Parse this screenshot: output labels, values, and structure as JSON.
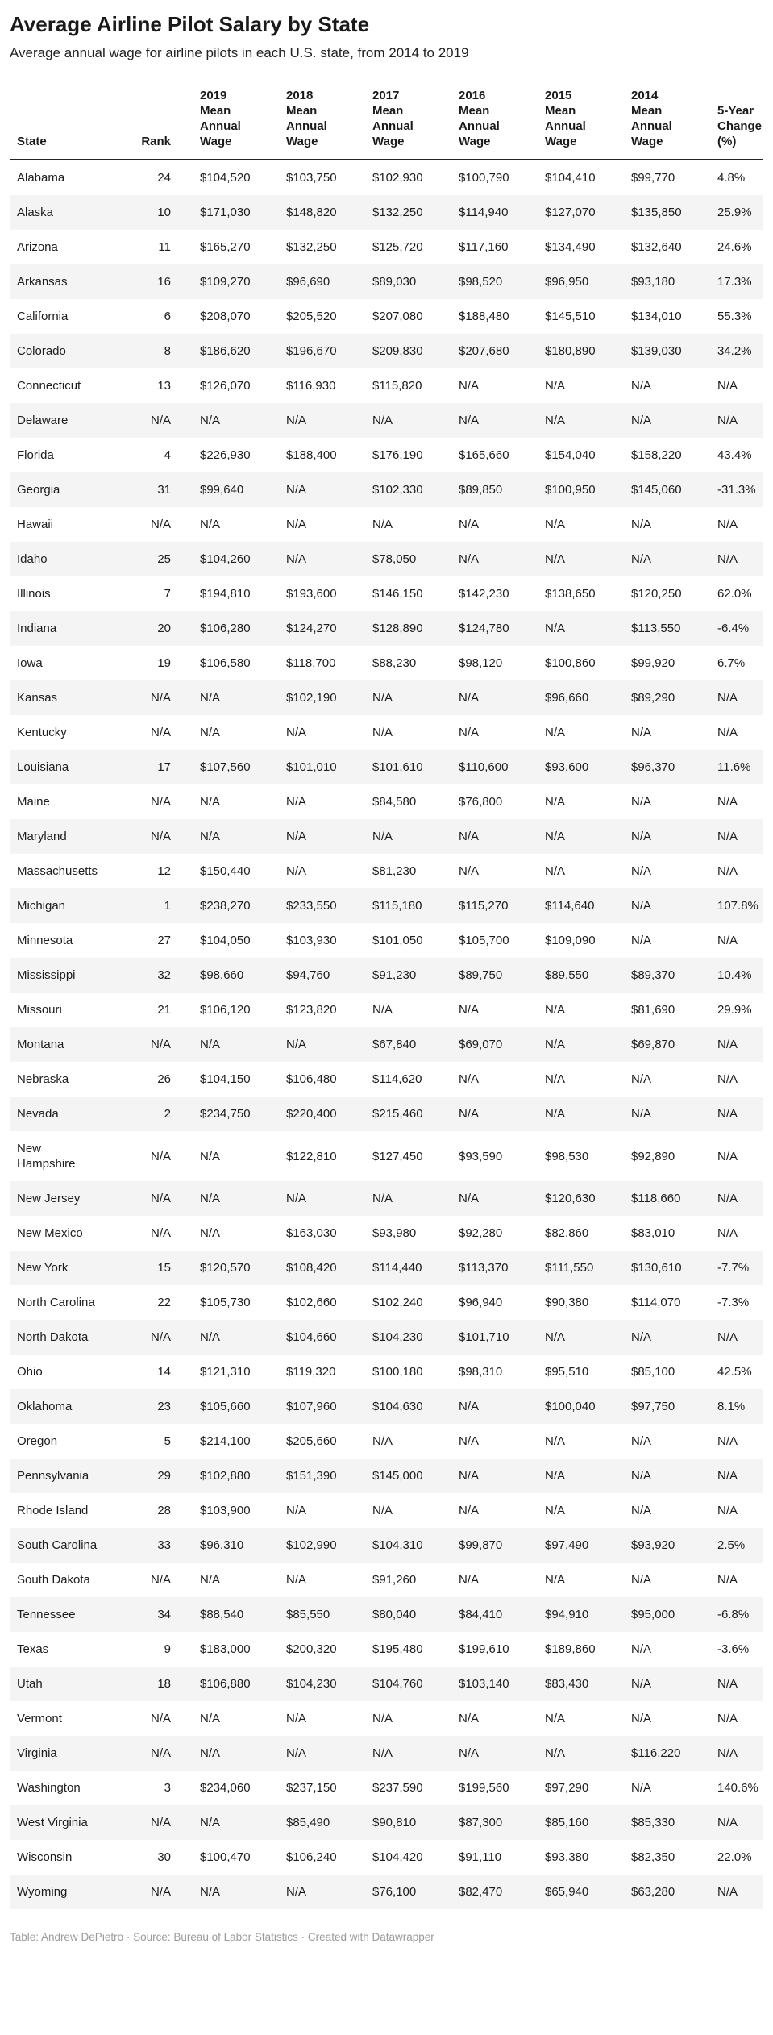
{
  "table": {
    "header_display": [
      "State",
      "Rank",
      "2019\nMean\nAnnual\nWage",
      "2018\nMean\nAnnual\nWage",
      "2017\nMean\nAnnual\nWage",
      "2016\nMean\nAnnual\nWage",
      "2015\nMean\nAnnual\nWage",
      "2014\nMean\nAnnual\nWage",
      "5-Year\nChange\n(%)"
    ],
    "column_keys": [
      "state",
      "rank",
      "wage-2019",
      "wage-2018",
      "wage-2017",
      "wage-2016",
      "wage-2015",
      "wage-2014",
      "five-year-change"
    ]
  },
  "chart_data": {
    "type": "table",
    "title": "Average Airline Pilot Salary by State",
    "subtitle": "Average annual wage for airline pilots in each U.S. state, from 2014 to 2019",
    "attribution": "Table: Andrew DePietro · Source: Bureau of Labor Statistics · Created with Datawrapper",
    "columns": [
      "State",
      "Rank",
      "2019 Mean Annual Wage",
      "2018 Mean Annual Wage",
      "2017 Mean Annual Wage",
      "2016 Mean Annual Wage",
      "2015 Mean Annual Wage",
      "2014 Mean Annual Wage",
      "5-Year Change (%)"
    ],
    "rows": [
      [
        "Alabama",
        "24",
        "$104,520",
        "$103,750",
        "$102,930",
        "$100,790",
        "$104,410",
        "$99,770",
        "4.8%"
      ],
      [
        "Alaska",
        "10",
        "$171,030",
        "$148,820",
        "$132,250",
        "$114,940",
        "$127,070",
        "$135,850",
        "25.9%"
      ],
      [
        "Arizona",
        "11",
        "$165,270",
        "$132,250",
        "$125,720",
        "$117,160",
        "$134,490",
        "$132,640",
        "24.6%"
      ],
      [
        "Arkansas",
        "16",
        "$109,270",
        "$96,690",
        "$89,030",
        "$98,520",
        "$96,950",
        "$93,180",
        "17.3%"
      ],
      [
        "California",
        "6",
        "$208,070",
        "$205,520",
        "$207,080",
        "$188,480",
        "$145,510",
        "$134,010",
        "55.3%"
      ],
      [
        "Colorado",
        "8",
        "$186,620",
        "$196,670",
        "$209,830",
        "$207,680",
        "$180,890",
        "$139,030",
        "34.2%"
      ],
      [
        "Connecticut",
        "13",
        "$126,070",
        "$116,930",
        "$115,820",
        "N/A",
        "N/A",
        "N/A",
        "N/A"
      ],
      [
        "Delaware",
        "N/A",
        "N/A",
        "N/A",
        "N/A",
        "N/A",
        "N/A",
        "N/A",
        "N/A"
      ],
      [
        "Florida",
        "4",
        "$226,930",
        "$188,400",
        "$176,190",
        "$165,660",
        "$154,040",
        "$158,220",
        "43.4%"
      ],
      [
        "Georgia",
        "31",
        "$99,640",
        "N/A",
        "$102,330",
        "$89,850",
        "$100,950",
        "$145,060",
        "-31.3%"
      ],
      [
        "Hawaii",
        "N/A",
        "N/A",
        "N/A",
        "N/A",
        "N/A",
        "N/A",
        "N/A",
        "N/A"
      ],
      [
        "Idaho",
        "25",
        "$104,260",
        "N/A",
        "$78,050",
        "N/A",
        "N/A",
        "N/A",
        "N/A"
      ],
      [
        "Illinois",
        "7",
        "$194,810",
        "$193,600",
        "$146,150",
        "$142,230",
        "$138,650",
        "$120,250",
        "62.0%"
      ],
      [
        "Indiana",
        "20",
        "$106,280",
        "$124,270",
        "$128,890",
        "$124,780",
        "N/A",
        "$113,550",
        "-6.4%"
      ],
      [
        "Iowa",
        "19",
        "$106,580",
        "$118,700",
        "$88,230",
        "$98,120",
        "$100,860",
        "$99,920",
        "6.7%"
      ],
      [
        "Kansas",
        "N/A",
        "N/A",
        "$102,190",
        "N/A",
        "N/A",
        "$96,660",
        "$89,290",
        "N/A"
      ],
      [
        "Kentucky",
        "N/A",
        "N/A",
        "N/A",
        "N/A",
        "N/A",
        "N/A",
        "N/A",
        "N/A"
      ],
      [
        "Louisiana",
        "17",
        "$107,560",
        "$101,010",
        "$101,610",
        "$110,600",
        "$93,600",
        "$96,370",
        "11.6%"
      ],
      [
        "Maine",
        "N/A",
        "N/A",
        "N/A",
        "$84,580",
        "$76,800",
        "N/A",
        "N/A",
        "N/A"
      ],
      [
        "Maryland",
        "N/A",
        "N/A",
        "N/A",
        "N/A",
        "N/A",
        "N/A",
        "N/A",
        "N/A"
      ],
      [
        "Massachusetts",
        "12",
        "$150,440",
        "N/A",
        "$81,230",
        "N/A",
        "N/A",
        "N/A",
        "N/A"
      ],
      [
        "Michigan",
        "1",
        "$238,270",
        "$233,550",
        "$115,180",
        "$115,270",
        "$114,640",
        "N/A",
        "107.8%"
      ],
      [
        "Minnesota",
        "27",
        "$104,050",
        "$103,930",
        "$101,050",
        "$105,700",
        "$109,090",
        "N/A",
        "N/A"
      ],
      [
        "Mississippi",
        "32",
        "$98,660",
        "$94,760",
        "$91,230",
        "$89,750",
        "$89,550",
        "$89,370",
        "10.4%"
      ],
      [
        "Missouri",
        "21",
        "$106,120",
        "$123,820",
        "N/A",
        "N/A",
        "N/A",
        "$81,690",
        "29.9%"
      ],
      [
        "Montana",
        "N/A",
        "N/A",
        "N/A",
        "$67,840",
        "$69,070",
        "N/A",
        "$69,870",
        "N/A"
      ],
      [
        "Nebraska",
        "26",
        "$104,150",
        "$106,480",
        "$114,620",
        "N/A",
        "N/A",
        "N/A",
        "N/A"
      ],
      [
        "Nevada",
        "2",
        "$234,750",
        "$220,400",
        "$215,460",
        "N/A",
        "N/A",
        "N/A",
        "N/A"
      ],
      [
        "New Hampshire",
        "N/A",
        "N/A",
        "$122,810",
        "$127,450",
        "$93,590",
        "$98,530",
        "$92,890",
        "N/A"
      ],
      [
        "New Jersey",
        "N/A",
        "N/A",
        "N/A",
        "N/A",
        "N/A",
        "$120,630",
        "$118,660",
        "N/A"
      ],
      [
        "New Mexico",
        "N/A",
        "N/A",
        "$163,030",
        "$93,980",
        "$92,280",
        "$82,860",
        "$83,010",
        "N/A"
      ],
      [
        "New York",
        "15",
        "$120,570",
        "$108,420",
        "$114,440",
        "$113,370",
        "$111,550",
        "$130,610",
        "-7.7%"
      ],
      [
        "North Carolina",
        "22",
        "$105,730",
        "$102,660",
        "$102,240",
        "$96,940",
        "$90,380",
        "$114,070",
        "-7.3%"
      ],
      [
        "North Dakota",
        "N/A",
        "N/A",
        "$104,660",
        "$104,230",
        "$101,710",
        "N/A",
        "N/A",
        "N/A"
      ],
      [
        "Ohio",
        "14",
        "$121,310",
        "$119,320",
        "$100,180",
        "$98,310",
        "$95,510",
        "$85,100",
        "42.5%"
      ],
      [
        "Oklahoma",
        "23",
        "$105,660",
        "$107,960",
        "$104,630",
        "N/A",
        "$100,040",
        "$97,750",
        "8.1%"
      ],
      [
        "Oregon",
        "5",
        "$214,100",
        "$205,660",
        "N/A",
        "N/A",
        "N/A",
        "N/A",
        "N/A"
      ],
      [
        "Pennsylvania",
        "29",
        "$102,880",
        "$151,390",
        "$145,000",
        "N/A",
        "N/A",
        "N/A",
        "N/A"
      ],
      [
        "Rhode Island",
        "28",
        "$103,900",
        "N/A",
        "N/A",
        "N/A",
        "N/A",
        "N/A",
        "N/A"
      ],
      [
        "South Carolina",
        "33",
        "$96,310",
        "$102,990",
        "$104,310",
        "$99,870",
        "$97,490",
        "$93,920",
        "2.5%"
      ],
      [
        "South Dakota",
        "N/A",
        "N/A",
        "N/A",
        "$91,260",
        "N/A",
        "N/A",
        "N/A",
        "N/A"
      ],
      [
        "Tennessee",
        "34",
        "$88,540",
        "$85,550",
        "$80,040",
        "$84,410",
        "$94,910",
        "$95,000",
        "-6.8%"
      ],
      [
        "Texas",
        "9",
        "$183,000",
        "$200,320",
        "$195,480",
        "$199,610",
        "$189,860",
        "N/A",
        "-3.6%"
      ],
      [
        "Utah",
        "18",
        "$106,880",
        "$104,230",
        "$104,760",
        "$103,140",
        "$83,430",
        "N/A",
        "N/A"
      ],
      [
        "Vermont",
        "N/A",
        "N/A",
        "N/A",
        "N/A",
        "N/A",
        "N/A",
        "N/A",
        "N/A"
      ],
      [
        "Virginia",
        "N/A",
        "N/A",
        "N/A",
        "N/A",
        "N/A",
        "N/A",
        "$116,220",
        "N/A"
      ],
      [
        "Washington",
        "3",
        "$234,060",
        "$237,150",
        "$237,590",
        "$199,560",
        "$97,290",
        "N/A",
        "140.6%"
      ],
      [
        "West Virginia",
        "N/A",
        "N/A",
        "$85,490",
        "$90,810",
        "$87,300",
        "$85,160",
        "$85,330",
        "N/A"
      ],
      [
        "Wisconsin",
        "30",
        "$100,470",
        "$106,240",
        "$104,420",
        "$91,110",
        "$93,380",
        "$82,350",
        "22.0%"
      ],
      [
        "Wyoming",
        "N/A",
        "N/A",
        "N/A",
        "$76,100",
        "$82,470",
        "$65,940",
        "$63,280",
        "N/A"
      ]
    ],
    "layout": {
      "striped_rows": true,
      "stripe_color": "#f4f4f4",
      "header_rule_color": "#242424"
    }
  }
}
